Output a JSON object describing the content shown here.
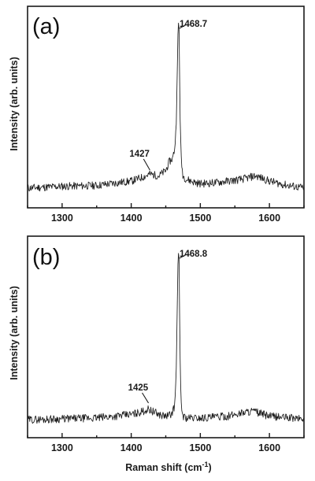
{
  "chart_data": [
    {
      "type": "line",
      "panel_label": "(a)",
      "xlabel": "",
      "ylabel": "Intensity (arb. units)",
      "xlim": [
        1250,
        1650
      ],
      "xticks": [
        "1300",
        "1400",
        "1500",
        "1600"
      ],
      "xtick_values": [
        1300,
        1400,
        1500,
        1600
      ],
      "ylim": [
        0,
        1.05
      ],
      "y_ticks_labeled": false,
      "grid": false,
      "series": [
        {
          "x": [
            1250,
            1300,
            1350,
            1400,
            1415,
            1427,
            1440,
            1450,
            1455,
            1460,
            1463,
            1465,
            1466.5,
            1467.5,
            1468.2,
            1468.7,
            1469.3,
            1470,
            1471,
            1472.5,
            1475,
            1480,
            1490,
            1500,
            1520,
            1540,
            1560,
            1580,
            1600,
            1620,
            1650
          ],
          "y": [
            0.05,
            0.06,
            0.065,
            0.09,
            0.11,
            0.13,
            0.12,
            0.15,
            0.2,
            0.22,
            0.28,
            0.4,
            0.68,
            0.92,
            0.99,
            1.0,
            0.95,
            0.7,
            0.4,
            0.2,
            0.12,
            0.1,
            0.085,
            0.075,
            0.08,
            0.09,
            0.1,
            0.12,
            0.09,
            0.07,
            0.05
          ]
        }
      ],
      "annotations": [
        {
          "text": "1468.7",
          "x": 1468.7,
          "y": 1.0
        },
        {
          "text": "1427",
          "x": 1427,
          "y": 0.13
        }
      ]
    },
    {
      "type": "line",
      "panel_label": "(b)",
      "xlabel": "Raman shift (cm-1)",
      "ylabel": "Intensity (arb. units)",
      "xlim": [
        1250,
        1650
      ],
      "xticks": [
        "1300",
        "1400",
        "1500",
        "1600"
      ],
      "xtick_values": [
        1300,
        1400,
        1500,
        1600
      ],
      "ylim": [
        0,
        1.05
      ],
      "y_ticks_labeled": false,
      "grid": false,
      "series": [
        {
          "x": [
            1250,
            1300,
            1350,
            1400,
            1415,
            1425,
            1440,
            1450,
            1458,
            1463,
            1465,
            1466.5,
            1467.5,
            1468.3,
            1468.8,
            1469.3,
            1470,
            1471,
            1472.5,
            1475,
            1480,
            1500,
            1540,
            1560,
            1575,
            1600,
            1650
          ],
          "y": [
            0.04,
            0.045,
            0.05,
            0.07,
            0.085,
            0.1,
            0.07,
            0.06,
            0.07,
            0.12,
            0.3,
            0.65,
            0.92,
            0.99,
            1.0,
            0.95,
            0.65,
            0.3,
            0.12,
            0.06,
            0.05,
            0.05,
            0.06,
            0.08,
            0.09,
            0.06,
            0.045
          ]
        }
      ],
      "annotations": [
        {
          "text": "1468.8",
          "x": 1468.8,
          "y": 1.0
        },
        {
          "text": "1425",
          "x": 1425,
          "y": 0.1
        }
      ]
    }
  ],
  "xlabel_parts": {
    "main": "Raman shift (cm",
    "sup": "-1",
    "close": ")"
  },
  "colors": {
    "line": "#1a1a1a",
    "frame": "#1a1a1a",
    "background": "#ffffff"
  }
}
